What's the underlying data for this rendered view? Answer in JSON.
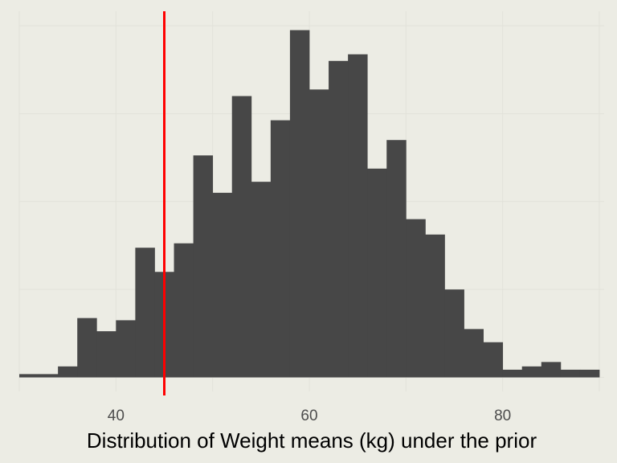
{
  "chart_data": {
    "type": "bar",
    "title": "",
    "xlabel": "Distribution of Weight means (kg) under the prior",
    "ylabel": "",
    "x_ticks": [
      40,
      60,
      80
    ],
    "xlim": [
      30.0,
      90.5
    ],
    "ylim": [
      0,
      160
    ],
    "grid": true,
    "bin_width": 2,
    "bins": [
      {
        "x": 31,
        "count": 1.5
      },
      {
        "x": 33,
        "count": 1.5
      },
      {
        "x": 35,
        "count": 5
      },
      {
        "x": 37,
        "count": 27
      },
      {
        "x": 39,
        "count": 21
      },
      {
        "x": 41,
        "count": 26
      },
      {
        "x": 43,
        "count": 59
      },
      {
        "x": 45,
        "count": 48
      },
      {
        "x": 47,
        "count": 61
      },
      {
        "x": 49,
        "count": 101
      },
      {
        "x": 51,
        "count": 84
      },
      {
        "x": 53,
        "count": 128
      },
      {
        "x": 55,
        "count": 89
      },
      {
        "x": 57,
        "count": 117
      },
      {
        "x": 59,
        "count": 158
      },
      {
        "x": 61,
        "count": 131
      },
      {
        "x": 63,
        "count": 144
      },
      {
        "x": 65,
        "count": 147
      },
      {
        "x": 67,
        "count": 95
      },
      {
        "x": 69,
        "count": 108
      },
      {
        "x": 71,
        "count": 72
      },
      {
        "x": 73,
        "count": 65
      },
      {
        "x": 75,
        "count": 40
      },
      {
        "x": 77,
        "count": 22
      },
      {
        "x": 79,
        "count": 16
      },
      {
        "x": 81,
        "count": 3.5
      },
      {
        "x": 83,
        "count": 5
      },
      {
        "x": 85,
        "count": 7
      },
      {
        "x": 87,
        "count": 3.5
      },
      {
        "x": 89,
        "count": 3.5
      }
    ],
    "reference_line": {
      "x": 45.0,
      "color": "#ff0000"
    },
    "bar_color": "#474747",
    "background_color": "#ecece4"
  }
}
